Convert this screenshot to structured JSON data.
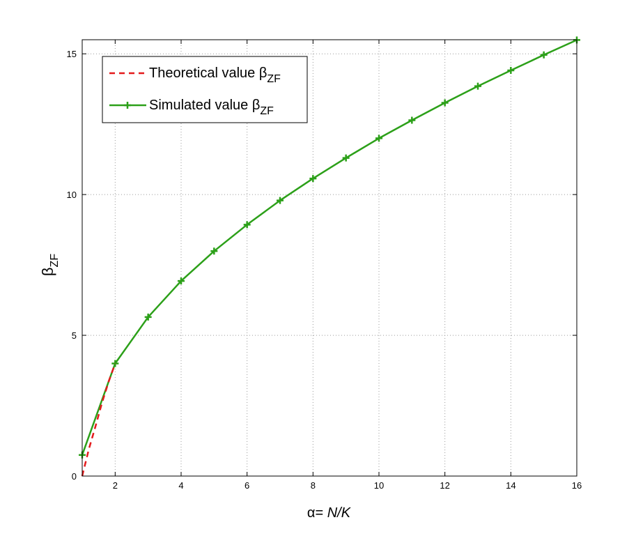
{
  "chart_data": {
    "type": "line",
    "xlabel": {
      "prefix": "α= ",
      "main": "N/K"
    },
    "ylabel": {
      "main": "β",
      "sub": "ZF"
    },
    "xlim": [
      1,
      16
    ],
    "ylim": [
      0,
      15.5
    ],
    "xticks": [
      2,
      4,
      6,
      8,
      10,
      12,
      14,
      16
    ],
    "yticks": [
      0,
      5,
      10,
      15
    ],
    "x_tick_labels": [
      "2",
      "4",
      "6",
      "8",
      "10",
      "12",
      "14",
      "16"
    ],
    "y_tick_labels": [
      "0",
      "5",
      "10",
      "15"
    ],
    "grid": true,
    "legend_position": "top-left",
    "series": [
      {
        "name": "Theoretical value β",
        "name_sub": "ZF",
        "color": "#e41a1c",
        "style": "dashed",
        "marker": "none",
        "x": [
          1,
          1.2,
          1.4,
          1.6,
          1.8,
          2
        ],
        "y": [
          0,
          0.95,
          1.75,
          2.6,
          3.35,
          4
        ]
      },
      {
        "name": "Simulated value β",
        "name_sub": "ZF",
        "color": "#2ca019",
        "style": "solid",
        "marker": "plus",
        "x": [
          1,
          2,
          3,
          4,
          5,
          6,
          7,
          8,
          9,
          10,
          11,
          12,
          13,
          14,
          15,
          16
        ],
        "y": [
          0.75,
          4.0,
          5.65,
          6.93,
          7.99,
          8.93,
          9.79,
          10.57,
          11.3,
          12.0,
          12.64,
          13.26,
          13.85,
          14.41,
          14.96,
          15.49
        ]
      }
    ]
  }
}
